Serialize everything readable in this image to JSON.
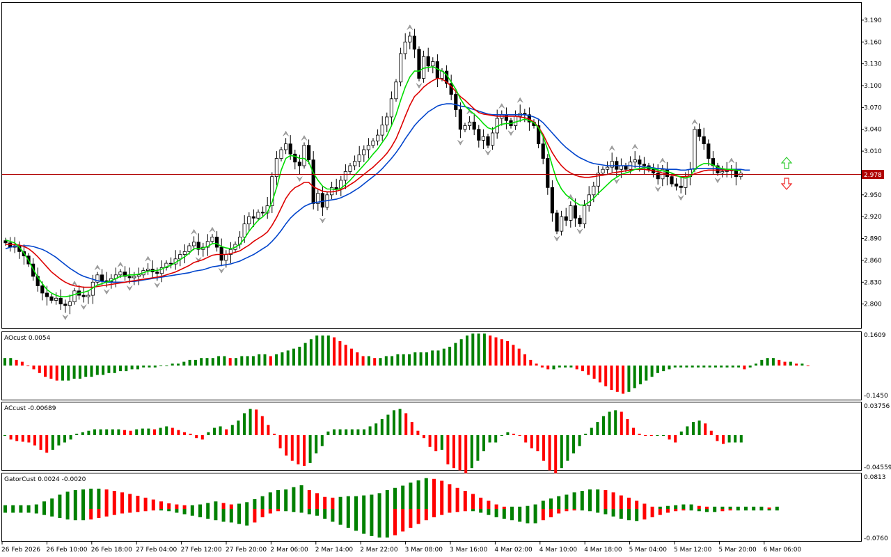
{
  "colors": {
    "background": "#ffffff",
    "frame": "#000000",
    "bull_body": "#ffffff",
    "bear_body": "#000000",
    "ma_fast": "#00dd00",
    "ma_mid": "#dd0000",
    "ma_slow": "#0044cc",
    "price_line": "#b00000",
    "osc_up": "#008000",
    "osc_down": "#ff0000",
    "fractal": "#a0a0a0",
    "arrow_up": "#33cc33",
    "arrow_down": "#ee2222"
  },
  "price_label": "2.978",
  "main_axis_labels": [
    "3.190",
    "3.160",
    "3.130",
    "3.100",
    "3.070",
    "3.040",
    "3.010",
    "2.950",
    "2.920",
    "2.890",
    "2.860",
    "2.830",
    "2.800"
  ],
  "time_labels": [
    "26 Feb 2026",
    "26 Feb 10:00",
    "26 Feb 18:00",
    "27 Feb 04:00",
    "27 Feb 12:00",
    "27 Feb 20:00",
    "2 Mar 06:00",
    "2 Mar 14:00",
    "2 Mar 22:00",
    "3 Mar 08:00",
    "3 Mar 16:00",
    "4 Mar 02:00",
    "4 Mar 10:00",
    "4 Mar 18:00",
    "5 Mar 04:00",
    "5 Mar 12:00",
    "5 Mar 20:00",
    "6 Mar 06:00"
  ],
  "panels": {
    "ao": {
      "title": "AOcust 0.0054",
      "max_label": "0.1609",
      "min_label": "-0.1450"
    },
    "ac": {
      "title": "ACcust -0.00689",
      "max_label": "0.03756",
      "min_label": "-0.04559"
    },
    "gator": {
      "title": "GatorCust 0.0024 -0.0020",
      "max_label": "0.0813",
      "min_label": "-0.0760"
    }
  },
  "chart_data": {
    "type": "candlestick",
    "ylim": [
      2.77,
      3.21
    ],
    "current_price": 2.978,
    "closes": [
      2.884,
      2.878,
      2.88,
      2.872,
      2.866,
      2.855,
      2.838,
      2.825,
      2.815,
      2.81,
      2.805,
      2.808,
      2.8,
      2.798,
      2.803,
      2.818,
      2.812,
      2.81,
      2.812,
      2.83,
      2.84,
      2.832,
      2.831,
      2.835,
      2.84,
      2.844,
      2.838,
      2.836,
      2.838,
      2.84,
      2.846,
      2.848,
      2.844,
      2.842,
      2.85,
      2.856,
      2.855,
      2.862,
      2.868,
      2.872,
      2.88,
      2.885,
      2.875,
      2.878,
      2.886,
      2.892,
      2.878,
      2.86,
      2.868,
      2.875,
      2.882,
      2.892,
      2.91,
      2.92,
      2.918,
      2.926,
      2.925,
      2.935,
      2.975,
      3.0,
      3.012,
      3.02,
      3.006,
      2.995,
      2.99,
      3.018,
      2.998,
      2.938,
      2.952,
      2.933,
      2.95,
      2.96,
      2.958,
      2.97,
      2.982,
      2.99,
      2.996,
      3.005,
      3.012,
      3.018,
      3.024,
      3.032,
      3.046,
      3.057,
      3.082,
      3.105,
      3.144,
      3.16,
      3.168,
      3.15,
      3.11,
      3.14,
      3.127,
      3.133,
      3.11,
      3.12,
      3.103,
      3.088,
      3.067,
      3.04,
      3.045,
      3.05,
      3.04,
      3.025,
      3.03,
      3.018,
      3.035,
      3.055,
      3.06,
      3.052,
      3.045,
      3.058,
      3.062,
      3.06,
      3.05,
      3.045,
      3.02,
      3.0,
      2.96,
      2.925,
      2.9,
      2.92,
      2.915,
      2.935,
      2.918,
      2.91,
      2.935,
      2.95,
      2.962,
      2.98,
      2.985,
      2.988,
      2.996,
      2.985,
      2.99,
      2.985,
      2.995,
      2.998,
      2.992,
      2.99,
      2.985,
      2.98,
      2.972,
      2.985,
      2.975,
      2.965,
      2.962,
      2.96,
      2.975,
      2.985,
      3.04,
      3.03,
      3.02,
      3.0,
      2.99,
      2.98,
      2.982,
      2.983,
      2.985,
      2.975,
      2.98
    ],
    "ma_fast": [
      2.888,
      2.886,
      2.884,
      2.878,
      2.87,
      2.86,
      2.848,
      2.837,
      2.828,
      2.82,
      2.815,
      2.812,
      2.81,
      2.81,
      2.811,
      2.813,
      2.815,
      2.816,
      2.818,
      2.822,
      2.826,
      2.828,
      2.83,
      2.832,
      2.835,
      2.838,
      2.839,
      2.84,
      2.84,
      2.841,
      2.843,
      2.845,
      2.846,
      2.846,
      2.848,
      2.851,
      2.853,
      2.857,
      2.861,
      2.865,
      2.87,
      2.876,
      2.876,
      2.877,
      2.879,
      2.883,
      2.883,
      2.879,
      2.877,
      2.876,
      2.878,
      2.882,
      2.89,
      2.9,
      2.908,
      2.915,
      2.92,
      2.926,
      2.94,
      2.96,
      2.984,
      3.0,
      3.004,
      3.003,
      3.0,
      3.0,
      2.995,
      2.98,
      2.97,
      2.962,
      2.958,
      2.958,
      2.957,
      2.959,
      2.964,
      2.97,
      2.977,
      2.984,
      2.991,
      2.998,
      3.006,
      3.013,
      3.022,
      3.031,
      3.045,
      3.06,
      3.08,
      3.098,
      3.112,
      3.12,
      3.12,
      3.124,
      3.125,
      3.126,
      3.123,
      3.12,
      3.115,
      3.105,
      3.095,
      3.082,
      3.072,
      3.066,
      3.061,
      3.055,
      3.048,
      3.042,
      3.04,
      3.044,
      3.047,
      3.048,
      3.048,
      3.05,
      3.052,
      3.054,
      3.052,
      3.049,
      3.042,
      3.03,
      3.012,
      2.99,
      2.97,
      2.958,
      2.95,
      2.945,
      2.94,
      2.936,
      2.936,
      2.94,
      2.945,
      2.952,
      2.958,
      2.964,
      2.97,
      2.974,
      2.978,
      2.98,
      2.982,
      2.985,
      2.986,
      2.987,
      2.987,
      2.986,
      2.984,
      2.983,
      2.982,
      2.98,
      2.977,
      2.974,
      2.973,
      2.975,
      2.985,
      2.99,
      2.993,
      2.993,
      2.991,
      2.988,
      2.986,
      2.985,
      2.985,
      2.984,
      2.983
    ],
    "ma_mid": [
      2.882,
      2.882,
      2.882,
      2.881,
      2.879,
      2.876,
      2.871,
      2.865,
      2.858,
      2.851,
      2.844,
      2.839,
      2.834,
      2.83,
      2.827,
      2.825,
      2.824,
      2.823,
      2.823,
      2.823,
      2.824,
      2.825,
      2.826,
      2.827,
      2.828,
      2.829,
      2.83,
      2.831,
      2.832,
      2.833,
      2.834,
      2.835,
      2.836,
      2.837,
      2.838,
      2.84,
      2.842,
      2.844,
      2.847,
      2.85,
      2.853,
      2.857,
      2.859,
      2.861,
      2.864,
      2.867,
      2.868,
      2.868,
      2.868,
      2.869,
      2.871,
      2.873,
      2.877,
      2.881,
      2.886,
      2.89,
      2.894,
      2.899,
      2.908,
      2.919,
      2.932,
      2.945,
      2.954,
      2.96,
      2.963,
      2.967,
      2.967,
      2.961,
      2.958,
      2.955,
      2.954,
      2.954,
      2.955,
      2.957,
      2.96,
      2.964,
      2.968,
      2.973,
      2.978,
      2.983,
      2.988,
      2.994,
      3.0,
      3.007,
      3.016,
      3.027,
      3.042,
      3.058,
      3.073,
      3.085,
      3.091,
      3.098,
      3.103,
      3.107,
      3.11,
      3.109,
      3.105,
      3.099,
      3.092,
      3.085,
      3.08,
      3.074,
      3.068,
      3.063,
      3.061,
      3.06,
      3.059,
      3.058,
      3.058,
      3.058,
      3.058,
      3.058,
      3.057,
      3.056,
      3.054,
      3.05,
      3.043,
      3.033,
      3.02,
      3.008,
      2.998,
      2.99,
      2.984,
      2.98,
      2.977,
      2.975,
      2.974,
      2.974,
      2.975,
      2.976,
      2.977,
      2.978,
      2.98,
      2.981,
      2.982,
      2.983,
      2.984,
      2.985,
      2.985,
      2.985,
      2.984,
      2.983,
      2.982,
      2.98,
      2.978,
      2.977,
      2.976,
      2.975,
      2.975,
      2.976,
      2.979,
      2.981,
      2.983,
      2.984,
      2.984,
      2.984,
      2.984,
      2.984,
      2.984,
      2.984,
      2.983
    ],
    "ma_slow": [
      2.876,
      2.878,
      2.879,
      2.88,
      2.88,
      2.88,
      2.879,
      2.877,
      2.875,
      2.872,
      2.868,
      2.864,
      2.859,
      2.854,
      2.849,
      2.845,
      2.841,
      2.838,
      2.836,
      2.834,
      2.832,
      2.831,
      2.83,
      2.83,
      2.83,
      2.83,
      2.83,
      2.831,
      2.831,
      2.832,
      2.833,
      2.834,
      2.835,
      2.836,
      2.837,
      2.838,
      2.839,
      2.84,
      2.841,
      2.842,
      2.843,
      2.845,
      2.846,
      2.847,
      2.849,
      2.851,
      2.852,
      2.853,
      2.854,
      2.855,
      2.857,
      2.859,
      2.862,
      2.865,
      2.868,
      2.872,
      2.876,
      2.88,
      2.886,
      2.893,
      2.901,
      2.91,
      2.918,
      2.924,
      2.929,
      2.934,
      2.937,
      2.939,
      2.94,
      2.941,
      2.942,
      2.943,
      2.944,
      2.946,
      2.949,
      2.952,
      2.956,
      2.96,
      2.965,
      2.97,
      2.975,
      2.98,
      2.986,
      2.993,
      3.0,
      3.008,
      3.017,
      3.027,
      3.036,
      3.045,
      3.052,
      3.058,
      3.064,
      3.068,
      3.072,
      3.074,
      3.075,
      3.075,
      3.074,
      3.072,
      3.071,
      3.069,
      3.067,
      3.065,
      3.063,
      3.061,
      3.06,
      3.06,
      3.06,
      3.06,
      3.06,
      3.06,
      3.06,
      3.06,
      3.059,
      3.057,
      3.054,
      3.049,
      3.042,
      3.035,
      3.028,
      3.021,
      3.015,
      3.01,
      3.005,
      3.001,
      2.998,
      2.995,
      2.993,
      2.992,
      2.991,
      2.99,
      2.99,
      2.99,
      2.99,
      2.99,
      2.99,
      2.989,
      2.989,
      2.988,
      2.988,
      2.987,
      2.986,
      2.986,
      2.985,
      2.985,
      2.985,
      2.984,
      2.984,
      2.985,
      2.986,
      2.986,
      2.986,
      2.986,
      2.986,
      2.986,
      2.985,
      2.985,
      2.985,
      2.985,
      2.985,
      2.984,
      2.984
    ],
    "ao": [
      0.04,
      0.04,
      0.03,
      0.02,
      0.0,
      -0.02,
      -0.04,
      -0.06,
      -0.07,
      -0.08,
      -0.08,
      -0.08,
      -0.07,
      -0.07,
      -0.06,
      -0.06,
      -0.05,
      -0.05,
      -0.04,
      -0.04,
      -0.03,
      -0.03,
      -0.02,
      -0.02,
      -0.01,
      -0.01,
      -0.01,
      0.0,
      0.0,
      0.01,
      0.01,
      0.02,
      0.03,
      0.03,
      0.04,
      0.04,
      0.04,
      0.05,
      0.05,
      0.04,
      0.04,
      0.05,
      0.05,
      0.05,
      0.06,
      0.06,
      0.05,
      0.06,
      0.07,
      0.08,
      0.09,
      0.1,
      0.12,
      0.14,
      0.16,
      0.16,
      0.16,
      0.15,
      0.13,
      0.11,
      0.09,
      0.07,
      0.05,
      0.05,
      0.04,
      0.04,
      0.05,
      0.05,
      0.06,
      0.06,
      0.06,
      0.07,
      0.07,
      0.07,
      0.08,
      0.08,
      0.09,
      0.1,
      0.12,
      0.14,
      0.16,
      0.17,
      0.17,
      0.17,
      0.16,
      0.15,
      0.14,
      0.13,
      0.11,
      0.09,
      0.06,
      0.03,
      0.01,
      -0.01,
      -0.02,
      -0.02,
      -0.01,
      -0.01,
      -0.01,
      -0.02,
      -0.03,
      -0.05,
      -0.07,
      -0.09,
      -0.11,
      -0.13,
      -0.14,
      -0.15,
      -0.14,
      -0.12,
      -0.1,
      -0.08,
      -0.06,
      -0.04,
      -0.03,
      -0.02,
      -0.01,
      -0.01,
      -0.01,
      -0.01,
      -0.01,
      -0.01,
      -0.01,
      -0.01,
      -0.01,
      -0.01,
      -0.01,
      -0.01,
      -0.02,
      -0.01,
      0.01,
      0.03,
      0.04,
      0.04,
      0.03,
      0.02,
      0.02,
      0.01,
      0.01,
      0.0
    ],
    "ac": [
      0.0,
      -0.006,
      -0.008,
      -0.009,
      -0.01,
      -0.014,
      -0.02,
      -0.024,
      -0.02,
      -0.014,
      -0.01,
      -0.006,
      0.002,
      0.004,
      0.006,
      0.008,
      0.008,
      0.008,
      0.008,
      0.008,
      0.007,
      0.006,
      0.008,
      0.009,
      0.009,
      0.008,
      0.01,
      0.012,
      0.01,
      0.007,
      0.004,
      0.002,
      -0.004,
      -0.006,
      0.004,
      0.01,
      0.012,
      0.008,
      0.014,
      0.02,
      0.03,
      0.036,
      0.035,
      0.026,
      0.014,
      0.002,
      -0.018,
      -0.028,
      -0.035,
      -0.04,
      -0.042,
      -0.038,
      -0.025,
      -0.015,
      0.005,
      0.008,
      0.008,
      0.008,
      0.008,
      0.008,
      0.008,
      0.012,
      0.016,
      0.022,
      0.028,
      0.034,
      0.036,
      0.03,
      0.018,
      0.006,
      -0.004,
      -0.016,
      -0.022,
      -0.02,
      -0.04,
      -0.045,
      -0.048,
      -0.052,
      -0.045,
      -0.035,
      -0.022,
      -0.01,
      -0.01,
      0.0,
      0.004,
      0.002,
      0.0,
      -0.01,
      -0.018,
      -0.022,
      -0.035,
      -0.048,
      -0.052,
      -0.045,
      -0.035,
      -0.025,
      -0.015,
      0.002,
      0.01,
      0.018,
      0.026,
      0.032,
      0.034,
      0.032,
      0.022,
      0.01,
      0.002,
      0.0,
      -0.001,
      -0.001,
      -0.001,
      -0.006,
      -0.01,
      0.005,
      0.012,
      0.018,
      0.02,
      0.016,
      0.006,
      -0.008,
      -0.012,
      -0.01,
      -0.01,
      -0.01
    ],
    "gator_upper": [
      0.01,
      0.01,
      0.01,
      0.01,
      0.012,
      0.02,
      0.028,
      0.038,
      0.046,
      0.05,
      0.052,
      0.054,
      0.054,
      0.052,
      0.048,
      0.044,
      0.04,
      0.035,
      0.03,
      0.025,
      0.02,
      0.015,
      0.012,
      0.01,
      0.01,
      0.012,
      0.016,
      0.02,
      0.016,
      0.012,
      0.014,
      0.018,
      0.026,
      0.034,
      0.044,
      0.05,
      0.052,
      0.058,
      0.063,
      0.05,
      0.042,
      0.032,
      0.03,
      0.032,
      0.034,
      0.034,
      0.036,
      0.038,
      0.042,
      0.05,
      0.056,
      0.062,
      0.07,
      0.076,
      0.082,
      0.08,
      0.075,
      0.066,
      0.056,
      0.048,
      0.04,
      0.03,
      0.022,
      0.012,
      0.006,
      0.006,
      0.006,
      0.008,
      0.012,
      0.022,
      0.028,
      0.034,
      0.038,
      0.044,
      0.048,
      0.052,
      0.052,
      0.05,
      0.044,
      0.036,
      0.03,
      0.022,
      0.014,
      0.006,
      0.006,
      0.008,
      0.01,
      0.012,
      0.012,
      0.008,
      0.006,
      0.006,
      0.006,
      0.006,
      0.006,
      0.006,
      0.006,
      0.006,
      0.004,
      0.006
    ],
    "gator_lower": [
      -0.01,
      -0.01,
      -0.01,
      -0.01,
      -0.012,
      -0.016,
      -0.02,
      -0.024,
      -0.028,
      -0.03,
      -0.03,
      -0.028,
      -0.024,
      -0.02,
      -0.016,
      -0.012,
      -0.01,
      -0.008,
      -0.006,
      -0.004,
      -0.004,
      -0.006,
      -0.01,
      -0.014,
      -0.018,
      -0.022,
      -0.026,
      -0.03,
      -0.034,
      -0.036,
      -0.04,
      -0.044,
      -0.036,
      -0.022,
      -0.012,
      -0.006,
      -0.006,
      -0.008,
      -0.01,
      -0.014,
      -0.018,
      -0.026,
      -0.034,
      -0.042,
      -0.05,
      -0.058,
      -0.066,
      -0.072,
      -0.076,
      -0.076,
      -0.07,
      -0.06,
      -0.05,
      -0.04,
      -0.03,
      -0.022,
      -0.016,
      -0.01,
      -0.008,
      -0.006,
      -0.006,
      -0.01,
      -0.016,
      -0.022,
      -0.026,
      -0.03,
      -0.034,
      -0.038,
      -0.038,
      -0.03,
      -0.022,
      -0.012,
      -0.006,
      -0.004,
      -0.004,
      -0.006,
      -0.01,
      -0.014,
      -0.02,
      -0.026,
      -0.03,
      -0.032,
      -0.028,
      -0.022,
      -0.016,
      -0.01,
      -0.006,
      -0.004,
      -0.004,
      -0.006,
      -0.008,
      -0.008,
      -0.006,
      -0.004,
      -0.004,
      -0.004,
      -0.004,
      -0.004,
      -0.004,
      -0.004
    ]
  }
}
